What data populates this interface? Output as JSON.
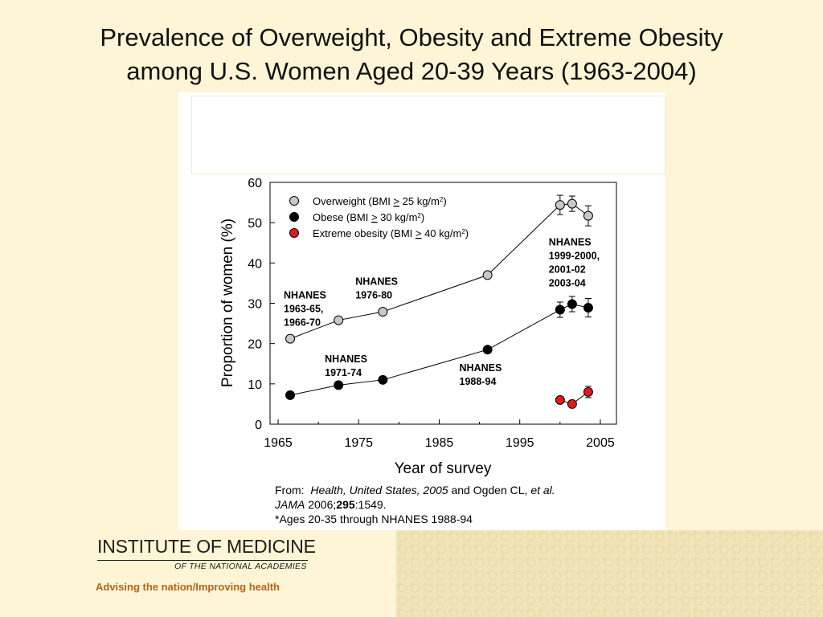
{
  "slide": {
    "title_line1": "Prevalence of Overweight, Obesity and Extreme Obesity",
    "title_line2": "among U.S. Women Aged 20-39 Years (1963-2004)"
  },
  "source_note": {
    "from_label": "From:",
    "source1": "Health, United States, 2005",
    "and_text": " and Ogden CL, ",
    "etal": "et al.",
    "journal": "JAMA",
    "year_text": " 2006;",
    "volume": "295",
    "pages": ":1549.",
    "footnote": "*Ages 20-35 through NHANES 1988-94"
  },
  "logo": {
    "name": "INSTITUTE OF MEDICINE",
    "sub": "OF THE NATIONAL ACADEMIES",
    "tagline_left": "Advising the nation",
    "tagline_sep": "/",
    "tagline_right": "Improving health"
  },
  "chart_data": {
    "type": "line",
    "title": "",
    "xlabel": "Year of survey",
    "ylabel": "Proportion of women (%)",
    "xlim": [
      1964,
      2007
    ],
    "ylim": [
      0,
      60
    ],
    "xticks": [
      1965,
      1975,
      1985,
      1995,
      2005
    ],
    "yticks": [
      0,
      10,
      20,
      30,
      40,
      50,
      60
    ],
    "grid": false,
    "legend_position": "top-left",
    "colors": {
      "Overweight": "#c8c8c8",
      "Obese": "#000000",
      "Extreme obesity": "#e0191b"
    },
    "series": [
      {
        "name": "Overweight (BMI ≥ 25 kg/m2)",
        "legend_main": "Overweight (BMI ",
        "legend_op": ">",
        "legend_value": " 25 kg/m",
        "legend_exp": "2",
        "legend_close": ")",
        "color": "#c8c8c8",
        "x": [
          1966.5,
          1972.5,
          1978,
          1991,
          2000,
          2001.5,
          2003.5
        ],
        "y": [
          21.2,
          25.8,
          27.9,
          37.0,
          54.4,
          54.7,
          51.7
        ],
        "err": [
          0,
          0,
          0,
          0,
          2.4,
          1.9,
          2.5
        ]
      },
      {
        "name": "Obese (BMI ≥ 30 kg/m2)",
        "legend_main": "Obese (BMI ",
        "legend_op": ">",
        "legend_value": " 30 kg/m",
        "legend_exp": "2",
        "legend_close": ")",
        "color": "#000000",
        "x": [
          1966.5,
          1972.5,
          1978,
          1991,
          2000,
          2001.5,
          2003.5
        ],
        "y": [
          7.2,
          9.7,
          11.0,
          18.5,
          28.4,
          29.8,
          28.9
        ],
        "err": [
          0,
          0,
          0,
          0,
          1.9,
          1.9,
          2.3
        ]
      },
      {
        "name": "Extreme obesity (BMI ≥ 40 kg/m2)",
        "legend_main": "Extreme obesity (BMI ",
        "legend_op": ">",
        "legend_value": " 40 kg/m",
        "legend_exp": "2",
        "legend_close": ")",
        "color": "#e0191b",
        "x": [
          2000,
          2001.5,
          2003.5
        ],
        "y": [
          6.0,
          5.0,
          8.0
        ],
        "err": [
          0,
          0,
          1.4
        ]
      }
    ],
    "annotations": [
      {
        "lines": [
          "NHANES",
          "1963-65,",
          "1966-70"
        ],
        "x": 1965.7,
        "y": 31.2
      },
      {
        "lines": [
          "NHANES",
          "1976-80"
        ],
        "x": 1974.6,
        "y": 34.6
      },
      {
        "lines": [
          "NHANES",
          "1971-74"
        ],
        "x": 1970.8,
        "y": 15.3
      },
      {
        "lines": [
          "NHANES",
          "1988-94"
        ],
        "x": 1987.5,
        "y": 13.2
      },
      {
        "lines": [
          "NHANES",
          "1999-2000,",
          "2001-02",
          "2003-04"
        ],
        "x": 1998.6,
        "y": 44.4
      }
    ]
  }
}
